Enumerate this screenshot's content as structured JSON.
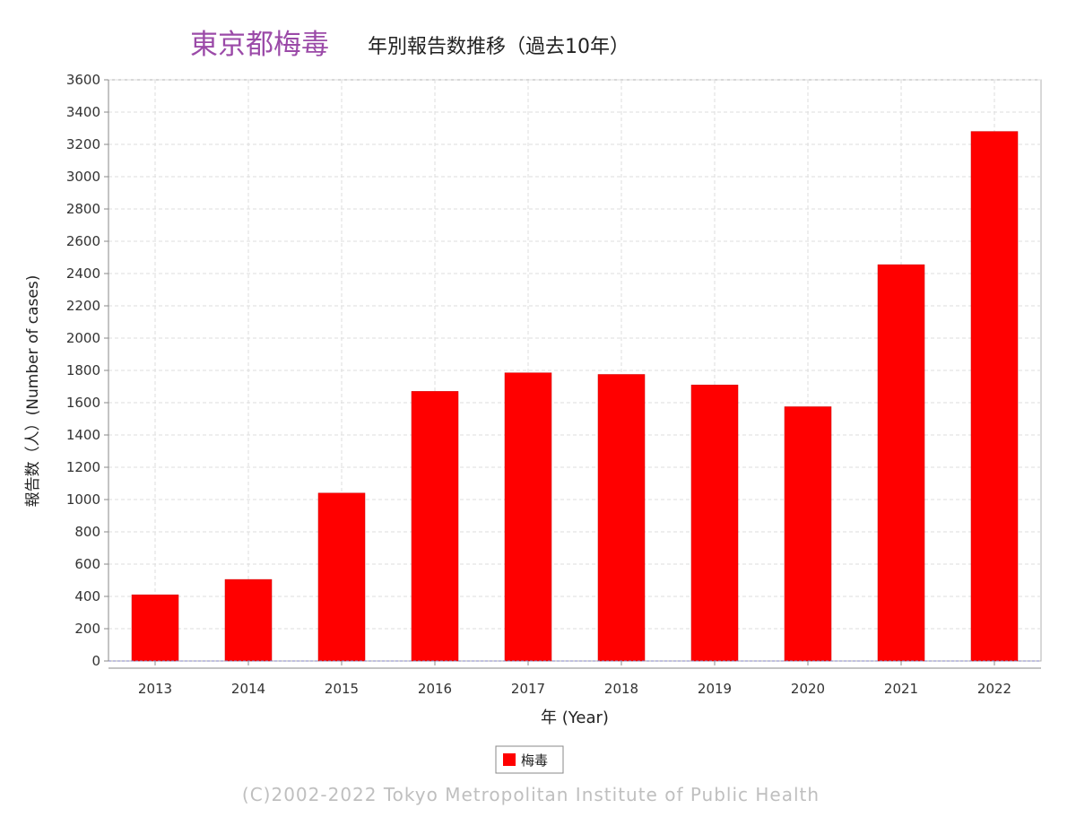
{
  "chart_data": {
    "type": "bar",
    "title": "東京都梅毒",
    "subtitle": "年別報告数推移（過去10年）",
    "xlabel": "年 (Year)",
    "ylabel": "報告数（人）(Number of cases)",
    "categories": [
      "2013",
      "2014",
      "2015",
      "2016",
      "2017",
      "2018",
      "2019",
      "2020",
      "2021",
      "2022"
    ],
    "series": [
      {
        "name": "梅毒",
        "values": [
          410,
          505,
          1040,
          1670,
          1785,
          1775,
          1710,
          1575,
          2455,
          3280
        ]
      }
    ],
    "ylim": [
      0,
      3600
    ],
    "yticks": [
      0,
      200,
      400,
      600,
      800,
      1000,
      1200,
      1400,
      1600,
      1800,
      2000,
      2200,
      2400,
      2600,
      2800,
      3000,
      3200,
      3400,
      3600
    ],
    "grid": true,
    "legend_position": "bottom-center",
    "colors": {
      "bar": "#ff0000",
      "title": "#9b4aa8",
      "subtitle": "#222222",
      "grid": "#dddddd",
      "axis": "#888888",
      "baseline": "#8080c0",
      "copyright": "#bfbfbf"
    }
  },
  "copyright": "(C)2002-2022 Tokyo Metropolitan Institute of Public Health"
}
